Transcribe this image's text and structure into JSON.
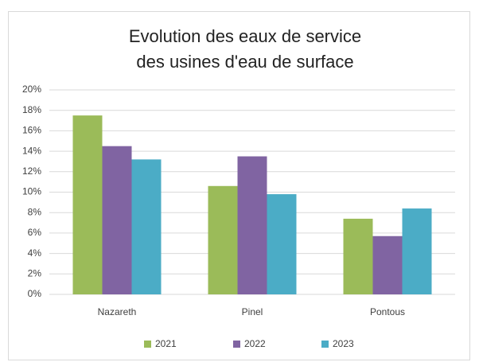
{
  "chart_data": {
    "type": "bar",
    "title": [
      "Evolution des eaux de service",
      "des usines d'eau de surface"
    ],
    "categories": [
      "Nazareth",
      "Pinel",
      "Pontous"
    ],
    "series": [
      {
        "name": "2021",
        "color": "#9bbb59",
        "values": [
          17.5,
          10.6,
          7.4
        ]
      },
      {
        "name": "2022",
        "color": "#8064a2",
        "values": [
          14.5,
          13.5,
          5.7
        ]
      },
      {
        "name": "2023",
        "color": "#4bacc6",
        "values": [
          13.2,
          9.8,
          8.4
        ]
      }
    ],
    "ylim": [
      0,
      20
    ],
    "yticks": [
      {
        "value": 0,
        "label": "0%"
      },
      {
        "value": 2,
        "label": "2%"
      },
      {
        "value": 4,
        "label": "4%"
      },
      {
        "value": 6,
        "label": "6%"
      },
      {
        "value": 8,
        "label": "8%"
      },
      {
        "value": 10,
        "label": "10%"
      },
      {
        "value": 12,
        "label": "12%"
      },
      {
        "value": 14,
        "label": "14%"
      },
      {
        "value": 16,
        "label": "16%"
      },
      {
        "value": 18,
        "label": "18%"
      },
      {
        "value": 20,
        "label": "20%"
      }
    ],
    "grid": true,
    "legend": "bottom"
  }
}
